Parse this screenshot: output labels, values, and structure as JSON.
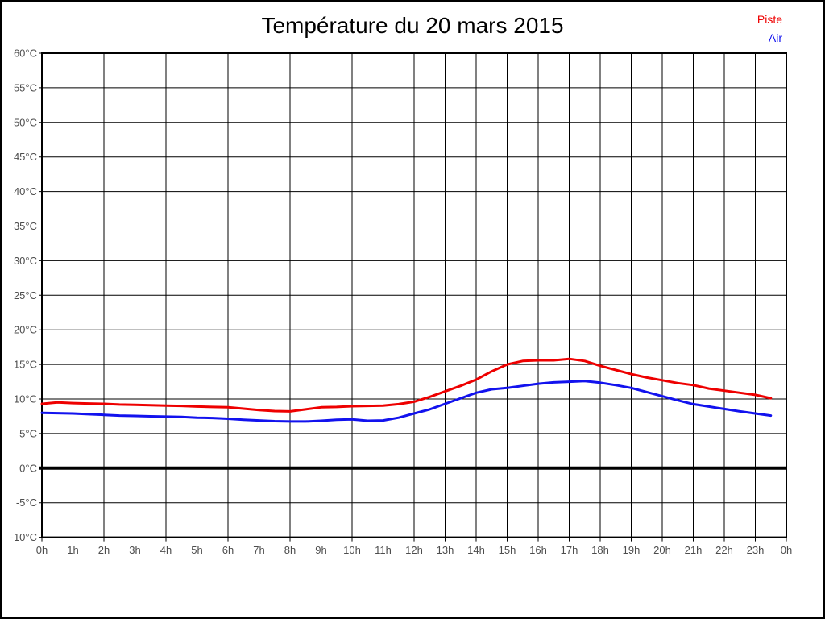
{
  "page": {
    "title": "Température du 20 mars 2015"
  },
  "legend": {
    "items": [
      {
        "label": "Piste",
        "color": "#ee0000"
      },
      {
        "label": "Air",
        "color": "#1212ee"
      }
    ]
  },
  "colors": {
    "background": "#ffffff",
    "frame": "#000000",
    "grid": "#000000",
    "axis_text": "#4d4d4d",
    "zero_line": "#000000"
  },
  "chart_data": {
    "type": "line",
    "title": "Température du 20 mars 2015",
    "xlabel": "",
    "ylabel": "",
    "x_unit": "hours",
    "xlim": [
      0,
      24
    ],
    "ylim": [
      -10,
      60
    ],
    "y_tick_step": 5,
    "grid": true,
    "zero_line_bold": true,
    "legend_position": "top-right",
    "y_tick_labels": [
      "60°C",
      "55°C",
      "50°C",
      "45°C",
      "40°C",
      "35°C",
      "30°C",
      "25°C",
      "20°C",
      "15°C",
      "10°C",
      "5°C",
      "0°C",
      "-5°C",
      "-10°C"
    ],
    "x_tick_labels": [
      "0h",
      "1h",
      "2h",
      "3h",
      "4h",
      "5h",
      "6h",
      "7h",
      "8h",
      "9h",
      "10h",
      "11h",
      "12h",
      "13h",
      "14h",
      "15h",
      "16h",
      "17h",
      "18h",
      "19h",
      "20h",
      "21h",
      "22h",
      "23h",
      "0h"
    ],
    "x": [
      0,
      0.5,
      1,
      1.5,
      2,
      2.5,
      3,
      3.5,
      4,
      4.5,
      5,
      5.5,
      6,
      6.5,
      7,
      7.5,
      8,
      8.5,
      9,
      9.5,
      10,
      10.5,
      11,
      11.5,
      12,
      12.5,
      13,
      13.5,
      14,
      14.5,
      15,
      15.5,
      16,
      16.5,
      17,
      17.5,
      18,
      18.5,
      19,
      19.5,
      20,
      20.5,
      21,
      21.5,
      22,
      22.5,
      23,
      23.5
    ],
    "series": [
      {
        "name": "Piste",
        "color": "#ee0000",
        "values": [
          9.3,
          9.5,
          9.4,
          9.35,
          9.3,
          9.2,
          9.15,
          9.1,
          9.05,
          9.0,
          8.9,
          8.85,
          8.8,
          8.6,
          8.4,
          8.25,
          8.2,
          8.5,
          8.8,
          8.85,
          8.95,
          9.0,
          9.05,
          9.25,
          9.6,
          10.3,
          11.1,
          11.9,
          12.8,
          14.0,
          15.0,
          15.5,
          15.6,
          15.6,
          15.8,
          15.5,
          14.8,
          14.2,
          13.6,
          13.1,
          12.7,
          12.3,
          12.0,
          11.5,
          11.2,
          10.9,
          10.6,
          10.1
        ]
      },
      {
        "name": "Air",
        "color": "#1212ee",
        "values": [
          8.0,
          7.95,
          7.9,
          7.8,
          7.7,
          7.6,
          7.55,
          7.5,
          7.45,
          7.4,
          7.3,
          7.25,
          7.15,
          7.0,
          6.9,
          6.8,
          6.75,
          6.75,
          6.85,
          7.0,
          7.05,
          6.85,
          6.9,
          7.3,
          7.9,
          8.5,
          9.3,
          10.1,
          10.9,
          11.4,
          11.6,
          11.9,
          12.2,
          12.4,
          12.5,
          12.6,
          12.35,
          12.0,
          11.6,
          11.0,
          10.4,
          9.8,
          9.25,
          8.9,
          8.55,
          8.2,
          7.9,
          7.6
        ]
      }
    ]
  }
}
